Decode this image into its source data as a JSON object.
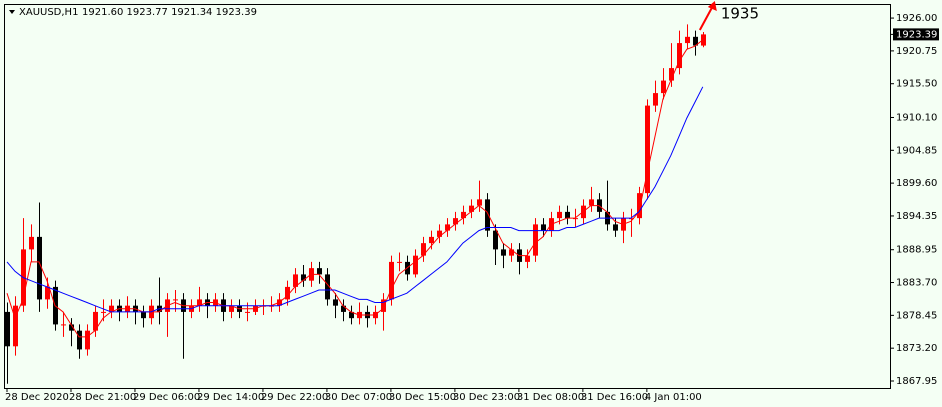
{
  "chart_data": {
    "type": "candlestick",
    "symbol": "XAUUSD,H1",
    "ohlc_label": "1921.60 1923.77 1921.34 1923.39",
    "annotation": "1935",
    "last_price": 1923.39,
    "bull_color": "#ff0000",
    "bear_color": "#000000",
    "background": "#f4fff4",
    "xlim": [
      -0.25,
      110.4
    ],
    "xticks": [
      {
        "value": 0,
        "label": "28 Dec 2020"
      },
      {
        "value": 8,
        "label": "28 Dec 21:00"
      },
      {
        "value": 16,
        "label": "29 Dec 06:00"
      },
      {
        "value": 24,
        "label": "29 Dec 14:00"
      },
      {
        "value": 32,
        "label": "29 Dec 22:00"
      },
      {
        "value": 40,
        "label": "30 Dec 07:00"
      },
      {
        "value": 48,
        "label": "30 Dec 15:00"
      },
      {
        "value": 56,
        "label": "30 Dec 23:00"
      },
      {
        "value": 64,
        "label": "31 Dec 08:00"
      },
      {
        "value": 72,
        "label": "31 Dec 16:00"
      },
      {
        "value": 80,
        "label": "4 Jan 01:00"
      }
    ],
    "ylim": [
      1866.83,
      1928.25
    ],
    "yticks": [
      {
        "value": 1926,
        "label": "1926.00"
      },
      {
        "value": 1920.75,
        "label": "1920.75"
      },
      {
        "value": 1915.5,
        "label": "1915.50"
      },
      {
        "value": 1910.1,
        "label": "1910.10"
      },
      {
        "value": 1904.85,
        "label": "1904.85"
      },
      {
        "value": 1899.6,
        "label": "1899.60"
      },
      {
        "value": 1894.35,
        "label": "1894.35"
      },
      {
        "value": 1888.95,
        "label": "1888.95"
      },
      {
        "value": 1883.7,
        "label": "1883.70"
      },
      {
        "value": 1878.45,
        "label": "1878.45"
      },
      {
        "value": 1873.2,
        "label": "1873.20"
      },
      {
        "value": 1867.95,
        "label": "1867.95"
      }
    ],
    "open": [
      1879,
      1873.5,
      1880,
      1889,
      1891,
      1881,
      1883,
      1877,
      1877,
      1876,
      1873,
      1876,
      1879,
      1879,
      1880,
      1879,
      1880,
      1879,
      1878,
      1880,
      1879,
      1881,
      1881,
      1879,
      1880,
      1881,
      1880,
      1881,
      1879,
      1880,
      1879,
      1879,
      1880,
      1880,
      1880,
      1881,
      1883,
      1885,
      1884,
      1886,
      1885,
      1881,
      1880,
      1879,
      1878,
      1879,
      1878,
      1879,
      1881,
      1887,
      1887,
      1885,
      1888,
      1890,
      1891,
      1892,
      1893,
      1894,
      1895,
      1896,
      1897,
      1892,
      1889,
      1888,
      1889,
      1887,
      1888,
      1893,
      1892,
      1894,
      1895,
      1894,
      1894,
      1896,
      1897,
      1895,
      1893,
      1892,
      1894,
      1894,
      1898,
      1912,
      1914,
      1916,
      1918,
      1922,
      1923,
      1921.6
    ],
    "high": [
      1880.5,
      1881.5,
      1894,
      1893,
      1896.5,
      1884.5,
      1884,
      1879,
      1878,
      1877,
      1877,
      1880,
      1881,
      1881,
      1881,
      1881.5,
      1881,
      1880,
      1881,
      1884.5,
      1882,
      1882.5,
      1882,
      1881,
      1883,
      1882,
      1882,
      1882,
      1881,
      1881,
      1880.5,
      1881,
      1881,
      1881.5,
      1882,
      1884,
      1886,
      1886.5,
      1887,
      1887,
      1886,
      1882,
      1881,
      1880,
      1880.5,
      1880,
      1880,
      1882,
      1888,
      1888.5,
      1888,
      1889,
      1891,
      1892,
      1893,
      1894,
      1895,
      1896,
      1897,
      1900,
      1898,
      1893,
      1890,
      1890,
      1890,
      1889,
      1894,
      1894,
      1895,
      1896,
      1896,
      1895.5,
      1897,
      1899,
      1898,
      1900,
      1894,
      1895,
      1895.5,
      1899,
      1913,
      1916,
      1918,
      1922,
      1924,
      1925,
      1924,
      1923.77
    ],
    "low": [
      1867.5,
      1872,
      1879,
      1887,
      1879,
      1879.5,
      1876,
      1875,
      1873.5,
      1871.5,
      1872,
      1875,
      1877.5,
      1878,
      1877.5,
      1878,
      1877,
      1876.5,
      1877,
      1877,
      1875,
      1879,
      1871.5,
      1878,
      1879,
      1878,
      1879,
      1877.5,
      1878,
      1878,
      1877.5,
      1878.5,
      1878.5,
      1879,
      1879,
      1880,
      1882,
      1883,
      1883,
      1883.5,
      1880,
      1878,
      1877.5,
      1877,
      1877,
      1876.5,
      1877,
      1876,
      1880,
      1885.5,
      1884,
      1884.5,
      1887,
      1889,
      1890,
      1891,
      1892,
      1893,
      1894,
      1895,
      1891,
      1886.5,
      1886,
      1887,
      1885,
      1886,
      1887,
      1891,
      1891,
      1893,
      1893,
      1892.5,
      1893,
      1895,
      1894,
      1892,
      1891,
      1890,
      1891,
      1893,
      1897,
      1911,
      1913,
      1915,
      1917,
      1921,
      1920,
      1921.34
    ],
    "close": [
      1873.5,
      1880,
      1889,
      1891,
      1881,
      1883,
      1877,
      1877,
      1876,
      1873,
      1876,
      1879,
      1879,
      1880,
      1879,
      1880,
      1879,
      1878,
      1880,
      1879,
      1881,
      1881,
      1879,
      1880,
      1881,
      1880,
      1881,
      1879,
      1880,
      1879,
      1879,
      1880,
      1880,
      1880,
      1881,
      1883,
      1885,
      1884,
      1886,
      1885,
      1881,
      1880,
      1879,
      1878,
      1879,
      1878,
      1879,
      1881,
      1887,
      1887,
      1885,
      1888,
      1890,
      1891,
      1892,
      1893,
      1894,
      1895,
      1896,
      1897,
      1892,
      1889,
      1888,
      1889,
      1887,
      1888,
      1893,
      1892,
      1894,
      1895,
      1894,
      1894,
      1896,
      1897,
      1895,
      1893,
      1892,
      1894,
      1894,
      1898,
      1912,
      1914,
      1916,
      1918,
      1922,
      1923,
      1921.6,
      1923.39
    ],
    "series": [
      {
        "color": "#ff0000",
        "values": [
          1882,
          1878,
          1881,
          1887,
          1887,
          1884,
          1880,
          1879,
          1877,
          1875,
          1875,
          1876,
          1878,
          1879,
          1879.5,
          1879.5,
          1879.5,
          1879,
          1879,
          1879,
          1880,
          1880.5,
          1880,
          1880,
          1880,
          1880.5,
          1880.5,
          1880,
          1880,
          1879.5,
          1879.5,
          1879.5,
          1880,
          1880,
          1880.5,
          1881.5,
          1883,
          1884,
          1885,
          1885,
          1883.5,
          1882,
          1880,
          1879,
          1878.5,
          1878.5,
          1878.5,
          1879.5,
          1882.5,
          1885,
          1886,
          1887,
          1888,
          1889.5,
          1891,
          1892,
          1893,
          1894,
          1895,
          1896,
          1895,
          1892.5,
          1890,
          1889,
          1888,
          1888,
          1890,
          1891,
          1893,
          1893.5,
          1894,
          1894,
          1895,
          1896,
          1896,
          1895,
          1893.5,
          1893,
          1893.5,
          1895,
          1901,
          1907,
          1913,
          1916,
          1919,
          1921,
          1921.5,
          1922.5
        ]
      },
      {
        "color": "#0000ff",
        "values": [
          1887,
          1885.5,
          1884.5,
          1884,
          1883.5,
          1883,
          1882.5,
          1882,
          1881.5,
          1881,
          1880.5,
          1880,
          1879.5,
          1879,
          1879,
          1879,
          1879,
          1879,
          1879,
          1879.5,
          1879.5,
          1879.5,
          1879.5,
          1879.5,
          1880,
          1880,
          1880,
          1880,
          1880,
          1880,
          1880,
          1880,
          1880,
          1880,
          1880,
          1880.5,
          1881,
          1881.5,
          1882,
          1882.5,
          1882.5,
          1882.5,
          1882,
          1881.5,
          1881,
          1881,
          1880.5,
          1880.5,
          1881,
          1881.5,
          1882,
          1883,
          1884,
          1885,
          1886,
          1887,
          1888.5,
          1890,
          1891,
          1892,
          1892.5,
          1892.5,
          1892.5,
          1892.5,
          1892,
          1892,
          1892,
          1892,
          1892,
          1892,
          1892.5,
          1892.5,
          1893,
          1893.5,
          1894,
          1894,
          1894,
          1894,
          1894,
          1895,
          1897,
          1899,
          1901.5,
          1904,
          1907,
          1910,
          1912.5,
          1915
        ]
      }
    ]
  }
}
